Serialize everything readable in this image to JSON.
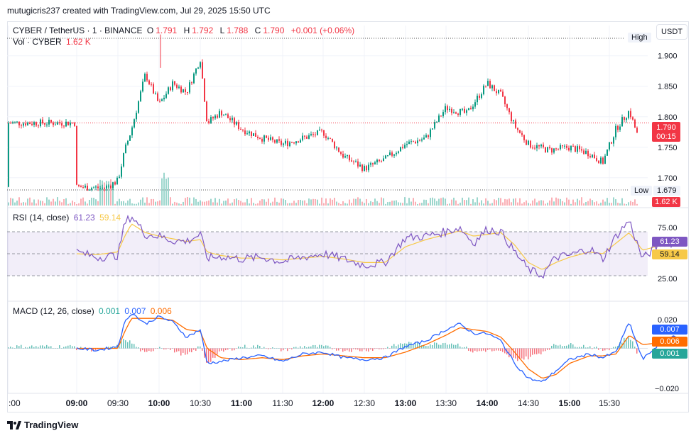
{
  "caption": "mutugicris237 created with TradingView.com, Jul 29, 2025 15:50 UTC",
  "brand": "TradingView",
  "currency_button": "USDT",
  "legend": {
    "symbol": "CYBER / TetherUS · 1 · BINANCE",
    "o_label": "O",
    "o_value": "1.791",
    "h_label": "H",
    "h_value": "1.792",
    "l_label": "L",
    "l_value": "1.788",
    "c_label": "C",
    "c_value": "1.790",
    "change": "+0.001 (+0.06%)",
    "vol_label": "Vol · CYBER",
    "vol_value": "1.62 K"
  },
  "markers": {
    "high_label": "High",
    "low_label": "Low",
    "low_value": "1.679",
    "price_badge": "1.790",
    "countdown": "00:15",
    "vol_badge": "1.62 K"
  },
  "rsi": {
    "label": "RSI (14, close)",
    "value": "61.23",
    "ma_value": "59.14",
    "levels": [
      25,
      75
    ],
    "level_labels": [
      "25.00",
      "75.00"
    ]
  },
  "macd": {
    "label": "MACD (12, 26, close)",
    "hist_value": "0.001",
    "macd_value": "0.007",
    "signal_value": "0.006",
    "axis_labels": [
      "0.020",
      "−0.020"
    ]
  },
  "colors": {
    "up": "#089981",
    "down": "#f23645",
    "rsi": "#7e57c2",
    "rsi_ma": "#f7c948",
    "macd": "#2962ff",
    "signal": "#ff6d00"
  },
  "chart_data": [
    {
      "type": "candlestick",
      "title": "CYBER / TetherUS · 1 · BINANCE",
      "ylim": [
        1.68,
        1.945
      ],
      "yticks": [
        1.7,
        1.75,
        1.8,
        1.85,
        1.9
      ],
      "ytick_labels": [
        "1.700",
        "1.750",
        "1.800",
        "1.850",
        "1.900"
      ],
      "xtick_labels": [
        ":00",
        "09:00",
        "09:30",
        "10:00",
        "10:30",
        "11:00",
        "11:30",
        "12:00",
        "12:30",
        "13:00",
        "13:30",
        "14:00",
        "14:30",
        "15:00",
        "15:30"
      ],
      "x": [
        "08:30",
        "08:50",
        "09:00",
        "09:05",
        "09:10",
        "09:20",
        "09:30",
        "09:40",
        "09:50",
        "10:00",
        "10:05",
        "10:15",
        "10:30",
        "10:45",
        "11:00",
        "11:15",
        "11:30",
        "11:45",
        "12:00",
        "12:15",
        "12:30",
        "12:45",
        "13:00",
        "13:15",
        "13:30",
        "13:40",
        "13:50",
        "14:00",
        "14:15",
        "14:30",
        "14:45",
        "14:55",
        "15:05",
        "15:15",
        "15:25",
        "15:40",
        "15:50"
      ],
      "close": [
        1.685,
        1.683,
        1.695,
        1.745,
        1.78,
        1.87,
        1.82,
        1.855,
        1.84,
        1.895,
        1.79,
        1.808,
        1.78,
        1.765,
        1.755,
        1.765,
        1.775,
        1.735,
        1.715,
        1.73,
        1.755,
        1.765,
        1.815,
        1.805,
        1.855,
        1.835,
        1.785,
        1.755,
        1.745,
        1.75,
        1.74,
        1.725,
        1.78,
        1.81,
        1.745,
        1.775,
        1.79
      ],
      "high_marker": 1.935,
      "low_marker": 1.679,
      "last_price": 1.79,
      "volume_last": "1.62 K"
    },
    {
      "type": "line",
      "title": "RSI (14, close)",
      "ylim": [
        0,
        100
      ],
      "levels": [
        25,
        75
      ],
      "x": [
        "08:30",
        "08:45",
        "09:00",
        "09:05",
        "09:10",
        "09:20",
        "09:30",
        "09:40",
        "09:50",
        "10:00",
        "10:05",
        "10:15",
        "10:30",
        "10:45",
        "11:00",
        "11:15",
        "11:30",
        "11:45",
        "12:00",
        "12:15",
        "12:30",
        "12:45",
        "13:00",
        "13:10",
        "13:20",
        "13:30",
        "13:40",
        "13:50",
        "14:00",
        "14:10",
        "14:20",
        "14:30",
        "14:45",
        "14:55",
        "15:05",
        "15:15",
        "15:25",
        "15:40",
        "15:50"
      ],
      "series": [
        {
          "name": "RSI",
          "values": [
            52,
            46,
            48,
            85,
            93,
            72,
            70,
            65,
            64,
            72,
            45,
            47,
            44,
            46,
            41,
            46,
            50,
            44,
            37,
            40,
            68,
            70,
            75,
            80,
            62,
            78,
            75,
            52,
            32,
            25,
            46,
            48,
            56,
            44,
            70,
            88,
            44,
            64,
            61
          ]
        },
        {
          "name": "RSI MA",
          "values": [
            50,
            49,
            52,
            70,
            84,
            74,
            70,
            67,
            64,
            66,
            52,
            48,
            45,
            45,
            43,
            45,
            47,
            44,
            40,
            40,
            58,
            66,
            72,
            76,
            70,
            72,
            74,
            60,
            40,
            32,
            40,
            46,
            52,
            50,
            62,
            74,
            54,
            60,
            59
          ]
        }
      ]
    },
    {
      "type": "line",
      "title": "MACD (12, 26, close)",
      "ylim": [
        -0.024,
        0.024
      ],
      "yticks": [
        0.02,
        -0.02
      ],
      "ytick_labels": [
        "0.020",
        "−0.020"
      ],
      "x": [
        "08:30",
        "08:45",
        "09:00",
        "09:05",
        "09:10",
        "09:20",
        "09:30",
        "09:40",
        "09:50",
        "10:00",
        "10:05",
        "10:15",
        "10:30",
        "10:45",
        "11:00",
        "11:15",
        "11:30",
        "11:45",
        "12:00",
        "12:15",
        "12:30",
        "12:45",
        "13:00",
        "13:10",
        "13:20",
        "13:30",
        "13:40",
        "13:50",
        "14:00",
        "14:10",
        "14:20",
        "14:30",
        "14:45",
        "14:55",
        "15:05",
        "15:15",
        "15:25",
        "15:40",
        "15:50"
      ],
      "series": [
        {
          "name": "MACD",
          "values": [
            0.0,
            -0.001,
            0.001,
            0.014,
            0.019,
            0.013,
            0.017,
            0.014,
            0.006,
            0.01,
            -0.008,
            -0.007,
            -0.005,
            -0.004,
            -0.007,
            -0.003,
            -0.002,
            -0.005,
            -0.006,
            -0.005,
            0.001,
            0.004,
            0.01,
            0.013,
            0.008,
            0.008,
            0.004,
            -0.008,
            -0.016,
            -0.018,
            -0.012,
            -0.006,
            -0.003,
            -0.005,
            -0.002,
            0.014,
            -0.006,
            0.004,
            0.007
          ]
        },
        {
          "name": "Signal",
          "values": [
            0.0,
            0.0,
            0.0,
            0.009,
            0.016,
            0.016,
            0.016,
            0.015,
            0.01,
            0.009,
            0.0,
            -0.005,
            -0.006,
            -0.005,
            -0.006,
            -0.004,
            -0.003,
            -0.004,
            -0.005,
            -0.005,
            -0.002,
            0.002,
            0.007,
            0.011,
            0.01,
            0.009,
            0.006,
            -0.002,
            -0.011,
            -0.016,
            -0.014,
            -0.008,
            -0.004,
            -0.004,
            -0.003,
            0.007,
            0.002,
            0.003,
            0.006
          ]
        },
        {
          "name": "Histogram",
          "values": [
            0.0,
            -0.001,
            0.001,
            0.005,
            0.003,
            -0.003,
            0.001,
            -0.001,
            -0.004,
            0.001,
            -0.008,
            -0.002,
            0.001,
            0.001,
            -0.001,
            0.001,
            0.001,
            -0.001,
            -0.001,
            0.0,
            0.003,
            0.002,
            0.003,
            0.002,
            -0.002,
            -0.001,
            -0.002,
            -0.006,
            -0.005,
            -0.002,
            0.002,
            0.002,
            0.001,
            -0.001,
            0.001,
            0.007,
            -0.008,
            0.001,
            0.001
          ]
        }
      ]
    }
  ]
}
